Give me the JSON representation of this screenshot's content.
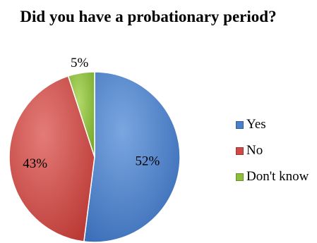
{
  "chart_data": {
    "type": "pie",
    "title": "Did you have a probationary period?",
    "categories": [
      "Yes",
      "No",
      "Don't know"
    ],
    "values": [
      52,
      43,
      5
    ],
    "labels": [
      "52%",
      "43%",
      "5%"
    ],
    "colors": [
      "#4a7fc9",
      "#cf4a46",
      "#8dbf3c"
    ],
    "legend_position": "right"
  }
}
